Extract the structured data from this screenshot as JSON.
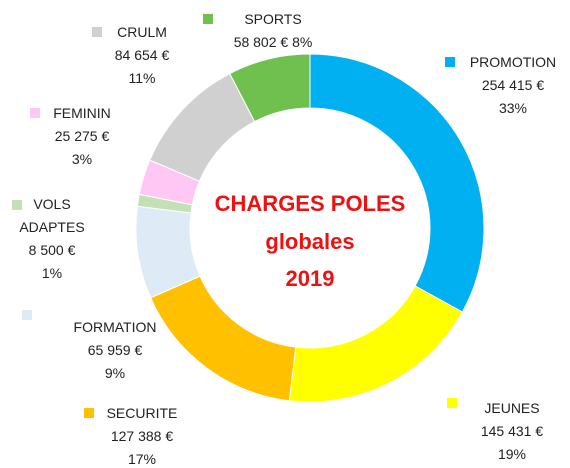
{
  "chart_data": {
    "type": "pie",
    "title": [
      "CHARGES POLES",
      "globales",
      "2019"
    ],
    "categories": [
      "PROMOTION",
      "JEUNES",
      "SECURITE",
      "FORMATION",
      "VOLS ADAPTES",
      "FEMININ",
      "CRULM",
      "SPORTS"
    ],
    "values": [
      254415,
      145431,
      127388,
      65959,
      8500,
      25275,
      84654,
      58802
    ],
    "value_labels": [
      "254 415 €",
      "145 431 €",
      "127 388 €",
      "65 959 €",
      "8 500 €",
      "25 275 €",
      "84 654 €",
      "58 802 €"
    ],
    "percent_labels": [
      "33%",
      "19%",
      "17%",
      "9%",
      "1%",
      "3%",
      "11%",
      "8%"
    ],
    "colors": [
      "#00b0f0",
      "#ffff00",
      "#ffc000",
      "#deebf7",
      "#c5e0b4",
      "#ffc8f4",
      "#d0d0d0",
      "#70c050"
    ]
  }
}
